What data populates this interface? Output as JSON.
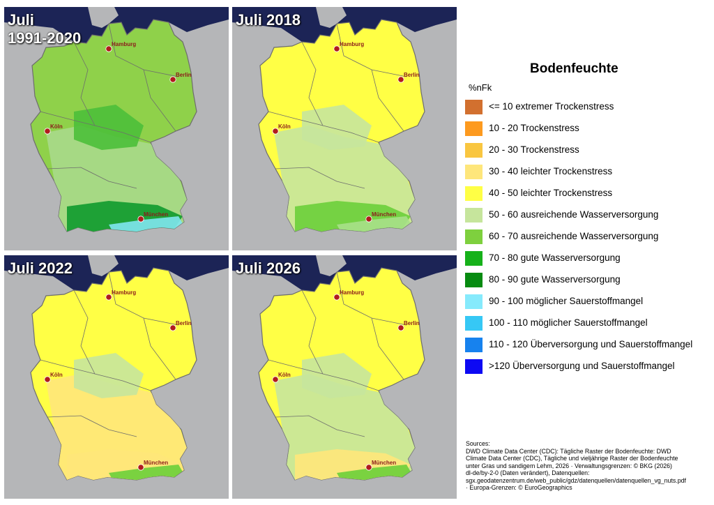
{
  "panels": [
    {
      "title": "Juli\n1991-2020",
      "fill": "#8fd14a",
      "zones": [
        "#a8d98b",
        "#4cbf3a",
        "#0f9a2e",
        "#7fe6f0"
      ]
    },
    {
      "title": "Juli 2018",
      "fill": "#ffff45",
      "zones": [
        "#c6e59c",
        "#c6e59c",
        "#6bcf3a",
        "#a8e08a"
      ]
    },
    {
      "title": "Juli 2022",
      "fill": "#ffff45",
      "zones": [
        "#ffe77a",
        "#c6e59c",
        "#ffe77a",
        "#6bcf3a"
      ]
    },
    {
      "title": "Juli 2026",
      "fill": "#ffff45",
      "zones": [
        "#c6e59c",
        "#c6e59c",
        "#ffe77a",
        "#6bcf3a"
      ]
    }
  ],
  "cities": [
    {
      "name": "Hamburg"
    },
    {
      "name": "Berlin"
    },
    {
      "name": "Köln"
    },
    {
      "name": "München"
    }
  ],
  "legend": {
    "title": "Bodenfeuchte",
    "unit": "%nFk",
    "items": [
      {
        "label": "<= 10 extremer Trockenstress",
        "color": "#d2702f"
      },
      {
        "label": "10 - 20 Trockenstress",
        "color": "#fd9a1f"
      },
      {
        "label": "20 - 30 Trockenstress",
        "color": "#f9c640"
      },
      {
        "label": "30 - 40 leichter Trockenstress",
        "color": "#fee67b"
      },
      {
        "label": "40 - 50 leichter Trockenstress",
        "color": "#ffff45"
      },
      {
        "label": "50 - 60 ausreichende Wasserversorgung",
        "color": "#c6e59c"
      },
      {
        "label": "60 - 70 ausreichende Wasserversorgung",
        "color": "#7ed03e"
      },
      {
        "label": "70 - 80 gute Wasserversorgung",
        "color": "#16b11a"
      },
      {
        "label": "80 - 90 gute Wasserversorgung",
        "color": "#078b11"
      },
      {
        "label": "90 - 100 möglicher Sauerstoffmangel",
        "color": "#86eafc"
      },
      {
        "label": "100 - 110 möglicher Sauerstoffmangel",
        "color": "#36c8f5"
      },
      {
        "label": "110 - 120 Überversorgung und Sauerstoffmangel",
        "color": "#1782ee"
      },
      {
        "label": ">120 Überversorgung und Sauerstoffmangel",
        "color": "#0d09f3"
      }
    ]
  },
  "sources": [
    "Sources:",
    "DWD Climate Data Center (CDC): Tägliche Raster der Bodenfeuchte: DWD",
    "Climate Data Center (CDC), Tägliche und vieljährige Raster der Bodenfeuchte",
    "unter Gras und sandigem Lehm, 2026 · Verwaltungsgrenzen: © BKG (2026)",
    "dl-de/by-2-0 (Daten verändert), Datenquellen:",
    "sgx.geodatenzentrum.de/web_public/gdz/datenquellen/datenquellen_vg_nuts.pdf",
    "· Europa-Grenzen: © EuroGeographics"
  ],
  "colors": {
    "sea": "#1c2456",
    "land_outside": "#b5b6b8",
    "neighbor_land": "#b5b6b8",
    "border": "#6d6d6d",
    "city_marker": "#b01c1c"
  }
}
